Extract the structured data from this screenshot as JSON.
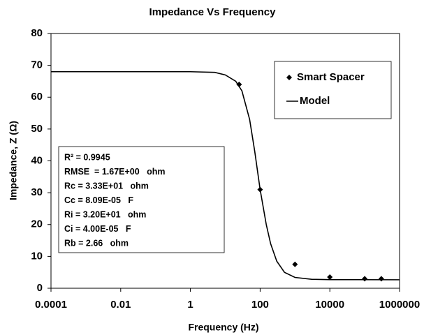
{
  "chart_data": {
    "type": "scatter",
    "title": "Impedance Vs Frequency",
    "x_label": "Frequency (Hz)",
    "y_label": "Impedance, Z (Ω)",
    "x_scale": "log",
    "xlim": [
      0.0001,
      1000000
    ],
    "xticks": [
      0.0001,
      0.01,
      1,
      100,
      10000,
      1000000
    ],
    "ylim": [
      0,
      80
    ],
    "yticks": [
      0,
      10,
      20,
      30,
      40,
      50,
      60,
      70,
      80
    ],
    "grid": false,
    "legend": "upper right",
    "series": [
      {
        "name": "Smart Spacer",
        "color": "#000000",
        "mode": "markers",
        "x": [
          25,
          100,
          1000,
          10000,
          100000,
          300000
        ],
        "values": [
          64,
          31,
          7.5,
          3.5,
          3,
          3
        ]
      },
      {
        "name": "Model",
        "color": "#000000",
        "mode": "line",
        "x": [
          0.0001,
          1,
          5,
          10,
          20,
          30,
          50,
          70,
          100,
          150,
          200,
          300,
          500,
          1000,
          3000,
          10000,
          1000000
        ],
        "values": [
          68,
          68,
          67.8,
          67,
          65,
          62,
          53,
          43,
          31,
          20,
          14,
          8.5,
          5,
          3.4,
          2.8,
          2.7,
          2.66
        ]
      }
    ],
    "annotations": [
      "R² = 0.9945",
      "RMSE  = 1.67E+00   ohm",
      "Rc = 3.33E+01   ohm",
      "Cc = 8.09E-05   F",
      "Ri = 3.20E+01   ohm",
      "Ci = 4.00E-05   F",
      "Rb = 2.66   ohm"
    ]
  }
}
